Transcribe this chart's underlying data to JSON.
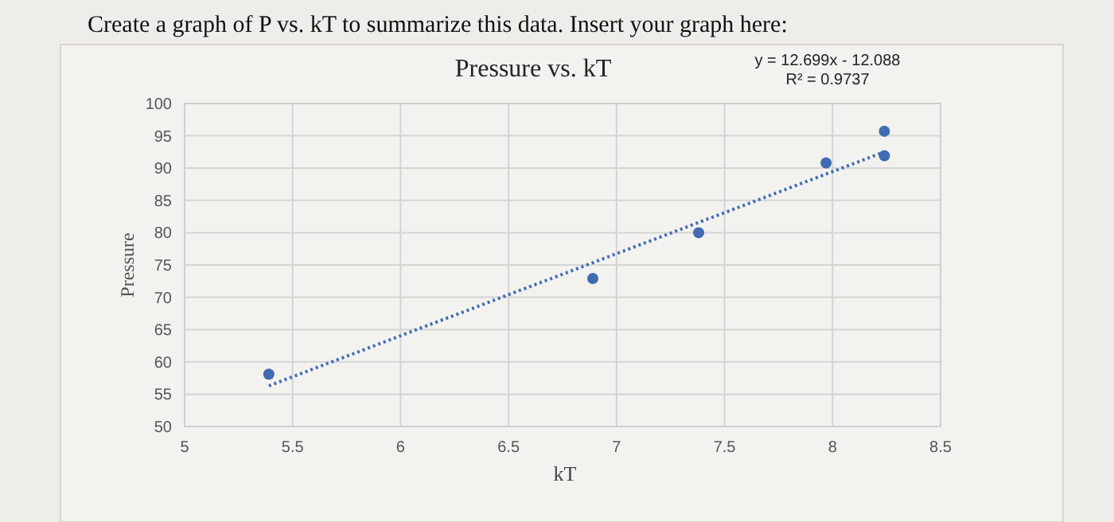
{
  "chart_data": {
    "type": "scatter",
    "title": "Pressure vs. kT",
    "xlabel": "kT",
    "ylabel": "Pressure",
    "annotations": [
      "Create a graph of P vs. kT to summarize this data. Insert your graph here:",
      "y = 12.699x - 12.088",
      "R² = 0.9737"
    ],
    "xlim": [
      5,
      8.5
    ],
    "xticks": [
      5,
      5.5,
      6,
      6.5,
      7,
      7.5,
      8,
      8.5
    ],
    "ylim": [
      50,
      100
    ],
    "yticks": [
      50,
      55,
      60,
      65,
      70,
      75,
      80,
      85,
      90,
      95,
      100
    ],
    "grid": true,
    "marker": "circle",
    "series": [
      {
        "color": "#3f6cb3",
        "x": [
          5.39,
          6.89,
          7.38,
          7.97,
          8.24,
          8.24
        ],
        "values": [
          58.1,
          72.9,
          80,
          90.8,
          95.7,
          91.9
        ]
      },
      {
        "type": "line",
        "color": "#3f6cb3",
        "line_style": "dotted",
        "marker": "none",
        "x": [
          5.39,
          8.24
        ],
        "values": [
          56.3,
          92.5
        ]
      }
    ]
  }
}
